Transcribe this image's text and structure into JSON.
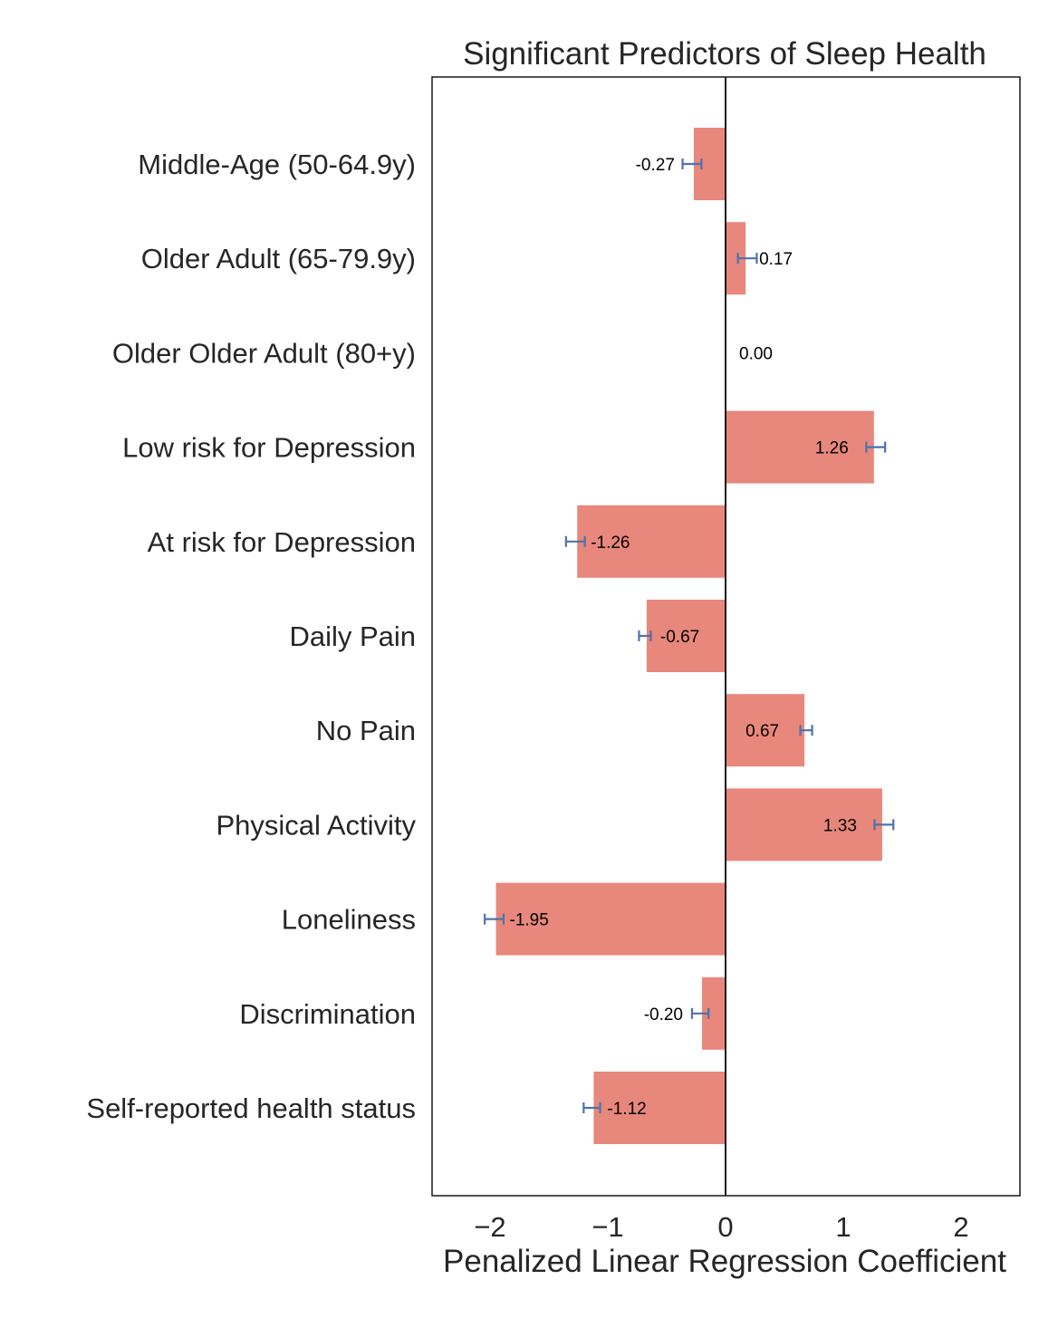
{
  "chart_data": {
    "type": "bar",
    "orientation": "horizontal",
    "title": "Significant Predictors of Sleep Health",
    "xlabel": "Penalized Linear Regression Coefficient",
    "ylabel": "",
    "xlim": [
      -2.5,
      2.5
    ],
    "xticks": [
      -2,
      -1,
      0,
      1,
      2
    ],
    "xtick_labels": [
      "−2",
      "−1",
      "0",
      "1",
      "2"
    ],
    "grid": false,
    "bar_color": "#e8877b",
    "error_color": "#4c72b0",
    "categories": [
      "Middle-Age (50-64.9y)",
      "Older Adult (65-79.9y)",
      "Older Older Adult (80+y)",
      "Low risk for Depression",
      "At risk for Depression",
      "Daily Pain",
      "No Pain",
      "Physical Activity",
      "Loneliness",
      "Discrimination",
      "Self-reported health status"
    ],
    "values": [
      -0.27,
      0.17,
      0.0,
      1.26,
      -1.26,
      -0.67,
      0.67,
      1.33,
      -1.95,
      -0.2,
      -1.12
    ],
    "value_labels": [
      "-0.27",
      "0.17",
      "0.00",
      "1.26",
      "-1.26",
      "-0.67",
      "0.67",
      "1.33",
      "-1.95",
      "-0.20",
      "-1.12"
    ],
    "errors": [
      0.08,
      0.08,
      0,
      0.08,
      0.08,
      0.05,
      0.05,
      0.08,
      0.08,
      0.07,
      0.07
    ]
  }
}
